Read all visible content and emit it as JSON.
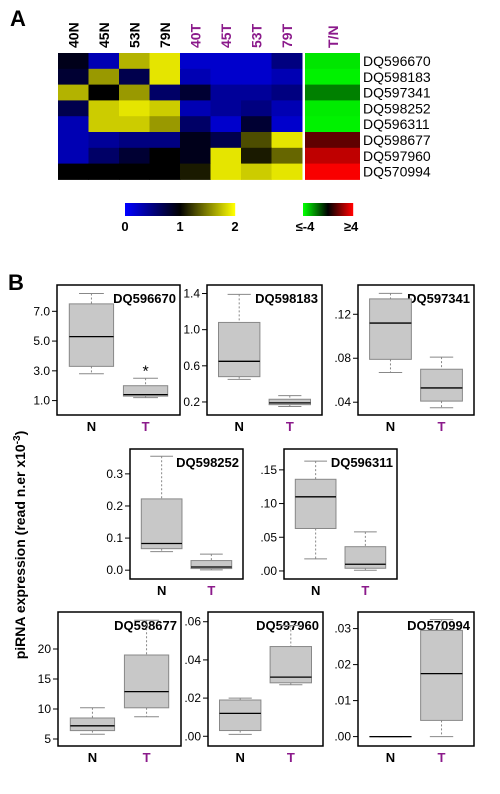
{
  "panel_a": {
    "label": "A",
    "samples": [
      "40N",
      "45N",
      "53N",
      "79N",
      "40T",
      "45T",
      "53T",
      "79T"
    ],
    "sample_group": [
      "N",
      "N",
      "N",
      "N",
      "T",
      "T",
      "T",
      "T"
    ],
    "tn_header": "T/N",
    "genes": [
      "DQ596670",
      "DQ598183",
      "DQ597341",
      "DQ598252",
      "DQ596311",
      "DQ598677",
      "DQ597960",
      "DQ570994"
    ],
    "heatmap_values": [
      [
        0.9,
        0.3,
        1.7,
        1.9,
        0.2,
        0.2,
        0.2,
        0.5
      ],
      [
        0.8,
        1.6,
        0.7,
        1.9,
        0.3,
        0.2,
        0.2,
        0.3
      ],
      [
        1.7,
        1.0,
        1.6,
        0.6,
        0.8,
        0.4,
        0.4,
        0.5
      ],
      [
        0.7,
        1.8,
        1.9,
        1.8,
        0.3,
        0.4,
        0.5,
        0.3
      ],
      [
        0.3,
        1.8,
        1.8,
        1.6,
        0.6,
        0.2,
        0.8,
        0.2
      ],
      [
        0.3,
        0.4,
        0.5,
        0.5,
        0.9,
        0.7,
        1.3,
        1.9
      ],
      [
        0.3,
        0.6,
        0.8,
        1.0,
        0.9,
        1.9,
        1.1,
        1.4
      ],
      [
        1.0,
        1.0,
        1.0,
        1.0,
        1.1,
        1.9,
        1.8,
        1.9
      ]
    ],
    "tn_values": [
      -3.6,
      -3.8,
      -2.0,
      -3.7,
      -3.8,
      1.5,
      3.0,
      3.9
    ],
    "scale1": {
      "ticks": [
        "0",
        "1",
        "2"
      ],
      "min": 0,
      "max": 2
    },
    "scale2": {
      "ticks": [
        "≤-4",
        "≥4"
      ],
      "min": -4,
      "max": 4
    },
    "colors": {
      "low": "#0000ff",
      "mid": "#000000",
      "high": "#ffff00",
      "tn_low": "#00ff00",
      "tn_mid": "#000000",
      "tn_high": "#ff0000"
    }
  },
  "panel_b": {
    "label": "B",
    "ylabel_main": "piRNA expression (read n.er x10",
    "ylabel_sup": "-3",
    "ylabel_end": ")",
    "colors": {
      "box": "#c8c8c8",
      "t_label": "#8b1a8b"
    }
  },
  "chart_data": [
    {
      "type": "box",
      "title": "DQ596670",
      "categories": [
        "N",
        "T"
      ],
      "yticks": [
        "7.0",
        "5.0",
        "3.0",
        "1.0"
      ],
      "ylim": [
        0.3,
        8.5
      ],
      "annotation": "*",
      "boxes": [
        {
          "name": "N",
          "min": 2.8,
          "q1": 3.3,
          "median": 5.3,
          "q3": 7.5,
          "max": 8.2
        },
        {
          "name": "T",
          "min": 1.2,
          "q1": 1.3,
          "median": 1.4,
          "q3": 2.0,
          "max": 2.5
        }
      ]
    },
    {
      "type": "box",
      "title": "DQ598183",
      "categories": [
        "N",
        "T"
      ],
      "yticks": [
        "1.4",
        "1.0",
        "0.6",
        "0.2"
      ],
      "ylim": [
        0.1,
        1.45
      ],
      "boxes": [
        {
          "name": "N",
          "min": 0.45,
          "q1": 0.48,
          "median": 0.65,
          "q3": 1.08,
          "max": 1.39
        },
        {
          "name": "T",
          "min": 0.15,
          "q1": 0.17,
          "median": 0.19,
          "q3": 0.23,
          "max": 0.27
        }
      ]
    },
    {
      "type": "box",
      "title": "DQ597341",
      "categories": [
        "N",
        "T"
      ],
      "yticks": [
        ".12",
        ".08",
        ".04"
      ],
      "ylim": [
        0.032,
        0.143
      ],
      "boxes": [
        {
          "name": "N",
          "min": 0.067,
          "q1": 0.079,
          "median": 0.112,
          "q3": 0.134,
          "max": 0.139
        },
        {
          "name": "T",
          "min": 0.035,
          "q1": 0.041,
          "median": 0.053,
          "q3": 0.07,
          "max": 0.081
        }
      ]
    },
    {
      "type": "box",
      "title": "DQ598252",
      "categories": [
        "N",
        "T"
      ],
      "yticks": [
        "0.3",
        "0.2",
        "0.1",
        "0.0"
      ],
      "ylim": [
        -0.015,
        0.365
      ],
      "boxes": [
        {
          "name": "N",
          "min": 0.058,
          "q1": 0.067,
          "median": 0.083,
          "q3": 0.222,
          "max": 0.355
        },
        {
          "name": "T",
          "min": 0.001,
          "q1": 0.005,
          "median": 0.01,
          "q3": 0.03,
          "max": 0.05
        }
      ]
    },
    {
      "type": "box",
      "title": "DQ596311",
      "categories": [
        "N",
        "T"
      ],
      "yticks": [
        ".15",
        ".10",
        ".05",
        ".00"
      ],
      "ylim": [
        -0.006,
        0.175
      ],
      "boxes": [
        {
          "name": "N",
          "min": 0.018,
          "q1": 0.063,
          "median": 0.11,
          "q3": 0.136,
          "max": 0.163
        },
        {
          "name": "T",
          "min": 0.001,
          "q1": 0.004,
          "median": 0.01,
          "q3": 0.036,
          "max": 0.058
        }
      ]
    },
    {
      "type": "box",
      "title": "DQ598677",
      "categories": [
        "N",
        "T"
      ],
      "yticks": [
        "20",
        "15",
        "10",
        "5"
      ],
      "ylim": [
        4.5,
        25.5
      ],
      "boxes": [
        {
          "name": "N",
          "min": 5.8,
          "q1": 6.4,
          "median": 7.2,
          "q3": 8.5,
          "max": 10.2
        },
        {
          "name": "T",
          "min": 8.7,
          "q1": 10.2,
          "median": 12.9,
          "q3": 19.0,
          "max": 24.8
        }
      ]
    },
    {
      "type": "box",
      "title": "DQ597960",
      "categories": [
        "N",
        "T"
      ],
      "yticks": [
        ".06",
        ".04",
        ".02",
        ".00"
      ],
      "ylim": [
        -0.003,
        0.063
      ],
      "boxes": [
        {
          "name": "N",
          "min": 0.001,
          "q1": 0.003,
          "median": 0.012,
          "q3": 0.019,
          "max": 0.02
        },
        {
          "name": "T",
          "min": 0.027,
          "q1": 0.028,
          "median": 0.031,
          "q3": 0.047,
          "max": 0.058
        }
      ]
    },
    {
      "type": "box",
      "title": "DQ570994",
      "categories": [
        "N",
        "T"
      ],
      "yticks": [
        ".03",
        ".02",
        ".01",
        ".00"
      ],
      "ylim": [
        -0.0015,
        0.0335
      ],
      "boxes": [
        {
          "name": "N",
          "min": 0.0,
          "q1": 0.0,
          "median": 0.0,
          "q3": 0.0,
          "max": 0.0
        },
        {
          "name": "T",
          "min": 0.0,
          "q1": 0.0045,
          "median": 0.0175,
          "q3": 0.0295,
          "max": 0.0325
        }
      ]
    }
  ]
}
